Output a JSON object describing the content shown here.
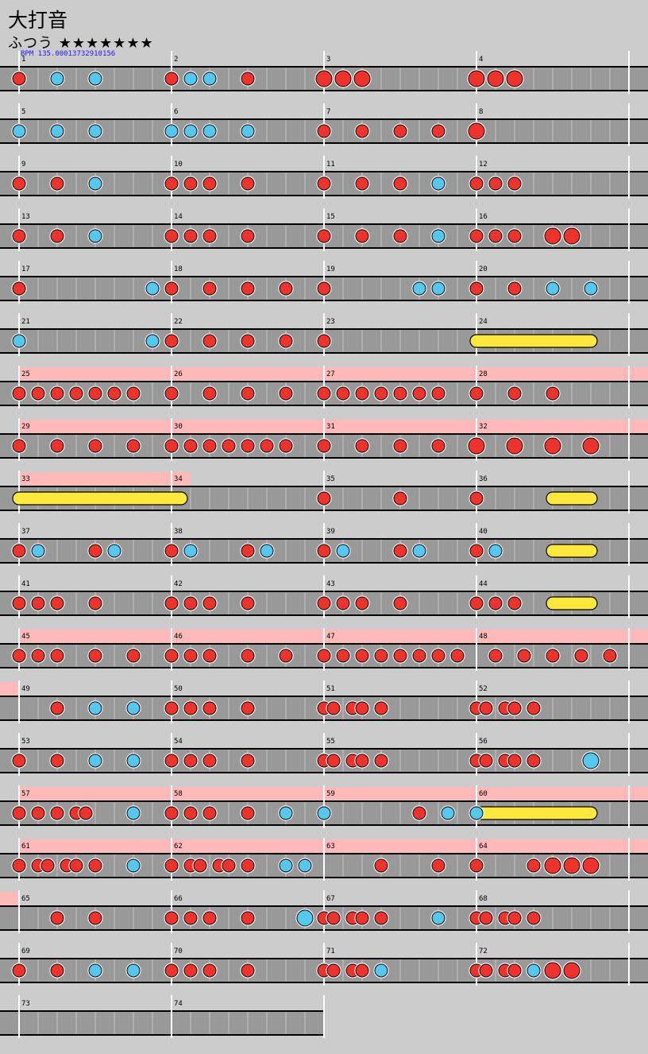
{
  "song": {
    "title": "大打音",
    "difficulty": "ふつう",
    "stars": "★★★★★★★",
    "bpm": "BPM 135.00013732910156"
  },
  "rows": [
    {
      "first": 1,
      "count": 4,
      "gogo": [],
      "notes": [
        [
          0,
          "d"
        ],
        [
          2,
          "k"
        ],
        [
          4,
          "k"
        ],
        [
          8,
          "d"
        ],
        [
          9,
          "k"
        ],
        [
          10,
          "k"
        ],
        [
          12,
          "d"
        ],
        [
          16,
          "D"
        ],
        [
          17,
          "D"
        ],
        [
          18,
          "D"
        ],
        [
          24,
          "D"
        ],
        [
          25,
          "D"
        ],
        [
          26,
          "D"
        ]
      ]
    },
    {
      "first": 5,
      "count": 4,
      "gogo": [],
      "notes": [
        [
          0,
          "k"
        ],
        [
          2,
          "k"
        ],
        [
          4,
          "k"
        ],
        [
          8,
          "k"
        ],
        [
          9,
          "k"
        ],
        [
          10,
          "k"
        ],
        [
          12,
          "k"
        ],
        [
          16,
          "d"
        ],
        [
          18,
          "d"
        ],
        [
          20,
          "d"
        ],
        [
          22,
          "d"
        ],
        [
          24,
          "d"
        ],
        [
          24,
          "D"
        ]
      ]
    },
    {
      "first": 9,
      "count": 4,
      "gogo": [],
      "notes": [
        [
          0,
          "d"
        ],
        [
          2,
          "d"
        ],
        [
          4,
          "k"
        ],
        [
          8,
          "d"
        ],
        [
          9,
          "d"
        ],
        [
          10,
          "d"
        ],
        [
          12,
          "d"
        ],
        [
          16,
          "d"
        ],
        [
          18,
          "d"
        ],
        [
          20,
          "d"
        ],
        [
          22,
          "k"
        ],
        [
          24,
          "d"
        ],
        [
          25,
          "d"
        ],
        [
          26,
          "d"
        ]
      ]
    },
    {
      "first": 13,
      "count": 4,
      "gogo": [],
      "notes": [
        [
          0,
          "d"
        ],
        [
          2,
          "d"
        ],
        [
          4,
          "k"
        ],
        [
          8,
          "d"
        ],
        [
          9,
          "d"
        ],
        [
          10,
          "d"
        ],
        [
          12,
          "d"
        ],
        [
          16,
          "d"
        ],
        [
          18,
          "d"
        ],
        [
          20,
          "d"
        ],
        [
          22,
          "k"
        ],
        [
          24,
          "d"
        ],
        [
          25,
          "d"
        ],
        [
          26,
          "d"
        ],
        [
          28,
          "D"
        ],
        [
          29,
          "D"
        ]
      ]
    },
    {
      "first": 17,
      "count": 4,
      "gogo": [],
      "notes": [
        [
          0,
          "d"
        ],
        [
          7,
          "k"
        ],
        [
          8,
          "d"
        ],
        [
          10,
          "d"
        ],
        [
          12,
          "d"
        ],
        [
          14,
          "d"
        ],
        [
          16,
          "d"
        ],
        [
          21,
          "k"
        ],
        [
          22,
          "k"
        ],
        [
          24,
          "d"
        ],
        [
          26,
          "d"
        ],
        [
          28,
          "k"
        ],
        [
          30,
          "k"
        ]
      ]
    },
    {
      "first": 21,
      "count": 4,
      "gogo": [],
      "notes": [
        [
          0,
          "k"
        ],
        [
          7,
          "k"
        ],
        [
          8,
          "d"
        ],
        [
          10,
          "d"
        ],
        [
          12,
          "d"
        ],
        [
          14,
          "d"
        ],
        [
          16,
          "d"
        ]
      ],
      "drumrolls": [
        [
          24,
          30
        ]
      ]
    },
    {
      "first": 25,
      "count": 4,
      "gogo": [
        [
          0,
          32
        ]
      ],
      "notes": [
        [
          0,
          "d"
        ],
        [
          1,
          "d"
        ],
        [
          2,
          "d"
        ],
        [
          3,
          "d"
        ],
        [
          4,
          "d"
        ],
        [
          5,
          "d"
        ],
        [
          6,
          "d"
        ],
        [
          8,
          "d"
        ],
        [
          10,
          "d"
        ],
        [
          12,
          "d"
        ],
        [
          14,
          "d"
        ],
        [
          16,
          "d"
        ],
        [
          17,
          "d"
        ],
        [
          18,
          "d"
        ],
        [
          19,
          "d"
        ],
        [
          20,
          "d"
        ],
        [
          21,
          "d"
        ],
        [
          22,
          "d"
        ],
        [
          24,
          "d"
        ],
        [
          26,
          "d"
        ],
        [
          28,
          "d"
        ]
      ]
    },
    {
      "first": 29,
      "count": 4,
      "gogo": [
        [
          0,
          32
        ]
      ],
      "notes": [
        [
          0,
          "d"
        ],
        [
          2,
          "d"
        ],
        [
          4,
          "d"
        ],
        [
          6,
          "d"
        ],
        [
          8,
          "d"
        ],
        [
          9,
          "d"
        ],
        [
          10,
          "d"
        ],
        [
          11,
          "d"
        ],
        [
          12,
          "d"
        ],
        [
          13,
          "d"
        ],
        [
          14,
          "d"
        ],
        [
          16,
          "d"
        ],
        [
          18,
          "d"
        ],
        [
          20,
          "d"
        ],
        [
          22,
          "d"
        ],
        [
          24,
          "D"
        ],
        [
          26,
          "D"
        ],
        [
          28,
          "D"
        ],
        [
          30,
          "D"
        ]
      ]
    },
    {
      "first": 33,
      "count": 4,
      "gogo": [
        [
          0,
          9
        ]
      ],
      "notes": [
        [
          16,
          "d"
        ],
        [
          20,
          "d"
        ],
        [
          24,
          "d"
        ]
      ],
      "drumrolls": [
        [
          0,
          8.5
        ],
        [
          28,
          30
        ]
      ]
    },
    {
      "first": 37,
      "count": 4,
      "gogo": [],
      "notes": [
        [
          0,
          "d"
        ],
        [
          1,
          "k"
        ],
        [
          4,
          "d"
        ],
        [
          5,
          "k"
        ],
        [
          8,
          "d"
        ],
        [
          9,
          "k"
        ],
        [
          12,
          "d"
        ],
        [
          13,
          "k"
        ],
        [
          16,
          "d"
        ],
        [
          17,
          "k"
        ],
        [
          20,
          "d"
        ],
        [
          21,
          "k"
        ],
        [
          24,
          "d"
        ],
        [
          25,
          "k"
        ]
      ],
      "drumrolls": [
        [
          28,
          30
        ]
      ]
    },
    {
      "first": 41,
      "count": 4,
      "gogo": [],
      "notes": [
        [
          0,
          "d"
        ],
        [
          1,
          "d"
        ],
        [
          2,
          "d"
        ],
        [
          4,
          "d"
        ],
        [
          8,
          "d"
        ],
        [
          9,
          "d"
        ],
        [
          10,
          "d"
        ],
        [
          12,
          "d"
        ],
        [
          16,
          "d"
        ],
        [
          17,
          "d"
        ],
        [
          18,
          "d"
        ],
        [
          20,
          "d"
        ],
        [
          24,
          "d"
        ],
        [
          25,
          "d"
        ],
        [
          26,
          "d"
        ]
      ],
      "drumrolls": [
        [
          28,
          30
        ]
      ]
    },
    {
      "first": 45,
      "count": 4,
      "gogo": [
        [
          0,
          32
        ]
      ],
      "notes": [
        [
          0,
          "d"
        ],
        [
          1,
          "d"
        ],
        [
          2,
          "d"
        ],
        [
          4,
          "d"
        ],
        [
          6,
          "d"
        ],
        [
          8,
          "d"
        ],
        [
          9,
          "d"
        ],
        [
          10,
          "d"
        ],
        [
          12,
          "d"
        ],
        [
          14,
          "d"
        ],
        [
          16,
          "d"
        ],
        [
          17,
          "d"
        ],
        [
          18,
          "d"
        ],
        [
          19,
          "d"
        ],
        [
          20,
          "d"
        ],
        [
          21,
          "d"
        ],
        [
          22,
          "d"
        ],
        [
          23,
          "d"
        ],
        [
          25,
          "d"
        ],
        [
          26.5,
          "d"
        ],
        [
          28,
          "d"
        ],
        [
          29.5,
          "d"
        ],
        [
          31,
          "d"
        ]
      ]
    },
    {
      "first": 49,
      "count": 4,
      "gogo": [
        [
          -1,
          0
        ]
      ],
      "notes": [
        [
          2,
          "d"
        ],
        [
          4,
          "k"
        ],
        [
          6,
          "k"
        ],
        [
          8,
          "d"
        ],
        [
          9,
          "d"
        ],
        [
          10,
          "d"
        ],
        [
          12,
          "d"
        ],
        [
          16,
          "d"
        ],
        [
          16.5,
          "d"
        ],
        [
          17.5,
          "d"
        ],
        [
          18,
          "d"
        ],
        [
          19,
          "d"
        ],
        [
          24,
          "d"
        ],
        [
          24.5,
          "d"
        ],
        [
          25.5,
          "d"
        ],
        [
          26,
          "d"
        ],
        [
          27,
          "d"
        ]
      ]
    },
    {
      "first": 53,
      "count": 4,
      "gogo": [],
      "notes": [
        [
          0,
          "d"
        ],
        [
          2,
          "d"
        ],
        [
          4,
          "k"
        ],
        [
          6,
          "k"
        ],
        [
          8,
          "d"
        ],
        [
          9,
          "d"
        ],
        [
          10,
          "d"
        ],
        [
          12,
          "d"
        ],
        [
          16,
          "d"
        ],
        [
          16.5,
          "d"
        ],
        [
          17.5,
          "d"
        ],
        [
          18,
          "d"
        ],
        [
          19,
          "d"
        ],
        [
          24,
          "d"
        ],
        [
          24.5,
          "d"
        ],
        [
          25.5,
          "d"
        ],
        [
          26,
          "d"
        ],
        [
          27,
          "d"
        ],
        [
          30,
          "K"
        ]
      ]
    },
    {
      "first": 57,
      "count": 4,
      "gogo": [
        [
          0,
          32
        ]
      ],
      "notes": [
        [
          0,
          "d"
        ],
        [
          1,
          "d"
        ],
        [
          2,
          "d"
        ],
        [
          3,
          "d"
        ],
        [
          3.5,
          "d"
        ],
        [
          6,
          "k"
        ],
        [
          8,
          "d"
        ],
        [
          9,
          "d"
        ],
        [
          10,
          "d"
        ],
        [
          12,
          "d"
        ],
        [
          14,
          "k"
        ],
        [
          16,
          "k"
        ],
        [
          21,
          "d"
        ],
        [
          22.5,
          "k"
        ],
        [
          24,
          "k"
        ]
      ],
      "drumrolls": [
        [
          24,
          30
        ]
      ]
    },
    {
      "first": 61,
      "count": 4,
      "gogo": [
        [
          0,
          32
        ]
      ],
      "notes": [
        [
          0,
          "d"
        ],
        [
          1,
          "d"
        ],
        [
          1.5,
          "d"
        ],
        [
          2.5,
          "d"
        ],
        [
          3,
          "d"
        ],
        [
          4,
          "d"
        ],
        [
          6,
          "k"
        ],
        [
          8,
          "d"
        ],
        [
          9,
          "d"
        ],
        [
          9.5,
          "d"
        ],
        [
          10.5,
          "d"
        ],
        [
          11,
          "d"
        ],
        [
          12,
          "d"
        ],
        [
          14,
          "k"
        ],
        [
          15,
          "k"
        ],
        [
          19,
          "d"
        ],
        [
          22,
          "d"
        ],
        [
          24,
          "d"
        ],
        [
          27,
          "d"
        ],
        [
          28,
          "D"
        ],
        [
          29,
          "D"
        ],
        [
          30,
          "D"
        ]
      ]
    },
    {
      "first": 65,
      "count": 4,
      "gogo": [
        [
          -1,
          0
        ]
      ],
      "notes": [
        [
          2,
          "d"
        ],
        [
          4,
          "d"
        ],
        [
          8,
          "d"
        ],
        [
          9,
          "d"
        ],
        [
          10,
          "d"
        ],
        [
          12,
          "d"
        ],
        [
          15,
          "K"
        ],
        [
          16,
          "d"
        ],
        [
          16.5,
          "d"
        ],
        [
          17.5,
          "d"
        ],
        [
          18,
          "d"
        ],
        [
          19,
          "d"
        ],
        [
          22,
          "k"
        ],
        [
          24,
          "d"
        ],
        [
          24.5,
          "d"
        ],
        [
          25.5,
          "d"
        ],
        [
          26,
          "d"
        ],
        [
          27,
          "d"
        ]
      ]
    },
    {
      "first": 69,
      "count": 4,
      "gogo": [],
      "notes": [
        [
          0,
          "d"
        ],
        [
          2,
          "d"
        ],
        [
          4,
          "k"
        ],
        [
          6,
          "k"
        ],
        [
          8,
          "d"
        ],
        [
          9,
          "d"
        ],
        [
          10,
          "d"
        ],
        [
          12,
          "d"
        ],
        [
          16,
          "d"
        ],
        [
          16.5,
          "d"
        ],
        [
          17.5,
          "d"
        ],
        [
          18,
          "d"
        ],
        [
          19,
          "k"
        ],
        [
          24,
          "d"
        ],
        [
          24.5,
          "d"
        ],
        [
          25.5,
          "d"
        ],
        [
          26,
          "d"
        ],
        [
          27,
          "k"
        ],
        [
          28,
          "D"
        ],
        [
          29,
          "D"
        ]
      ]
    },
    {
      "first": 73,
      "count": 2,
      "gogo": [],
      "notes": []
    }
  ],
  "colors": {
    "don": "#f0322d",
    "ka": "#55c8f0",
    "drumroll": "#ffe83c",
    "gogo": "#ffb9b9",
    "lane": "#999999",
    "bg": "#cccccc"
  }
}
